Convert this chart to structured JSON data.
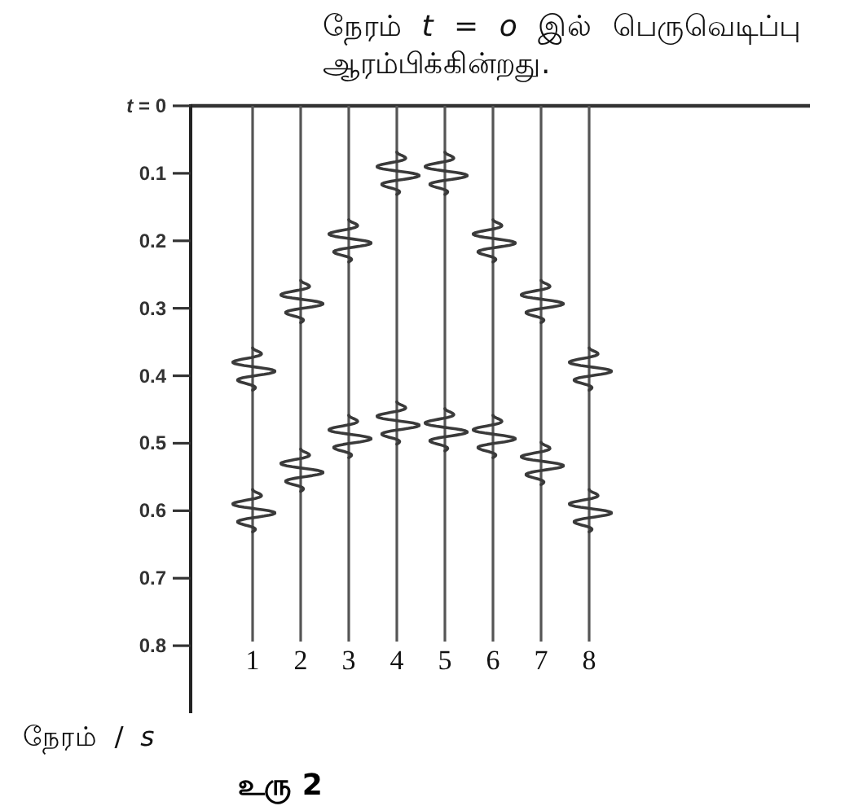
{
  "chart_data": {
    "type": "scatter",
    "ylabel": "நேரம் / s",
    "categories": [
      "1",
      "2",
      "3",
      "4",
      "5",
      "6",
      "7",
      "8"
    ],
    "series": [
      {
        "color": "#3a3a3a",
        "values": [
          0.39,
          0.29,
          0.2,
          0.1,
          0.1,
          0.2,
          0.29,
          0.39
        ]
      },
      {
        "color": "#3a3a3a",
        "values": [
          0.6,
          0.54,
          0.49,
          0.47,
          0.48,
          0.49,
          0.53,
          0.6
        ]
      }
    ],
    "ylim": [
      0.9,
      0
    ],
    "yticks": [
      {
        "value": 0,
        "label": "t = 0"
      },
      0.1,
      0.2,
      0.3,
      0.4,
      0.5,
      0.6,
      0.7,
      0.8
    ],
    "ref_lines": [
      {
        "axis": "y",
        "value": 0,
        "label": "நேரம் t = o இல் பெருவெடிப்பு ஆரம்பிக்கின்றது.",
        "color": "#333333"
      },
      {
        "axis": "x",
        "value": "1",
        "color": "#555555"
      },
      {
        "axis": "x",
        "value": "2",
        "color": "#555555"
      },
      {
        "axis": "x",
        "value": "3",
        "color": "#555555"
      },
      {
        "axis": "x",
        "value": "4",
        "color": "#555555"
      },
      {
        "axis": "x",
        "value": "5",
        "color": "#555555"
      },
      {
        "axis": "x",
        "value": "6",
        "color": "#555555"
      },
      {
        "axis": "x",
        "value": "7",
        "color": "#555555"
      },
      {
        "axis": "x",
        "value": "8",
        "color": "#555555"
      }
    ],
    "annotations": [
      "உரு 2"
    ]
  }
}
